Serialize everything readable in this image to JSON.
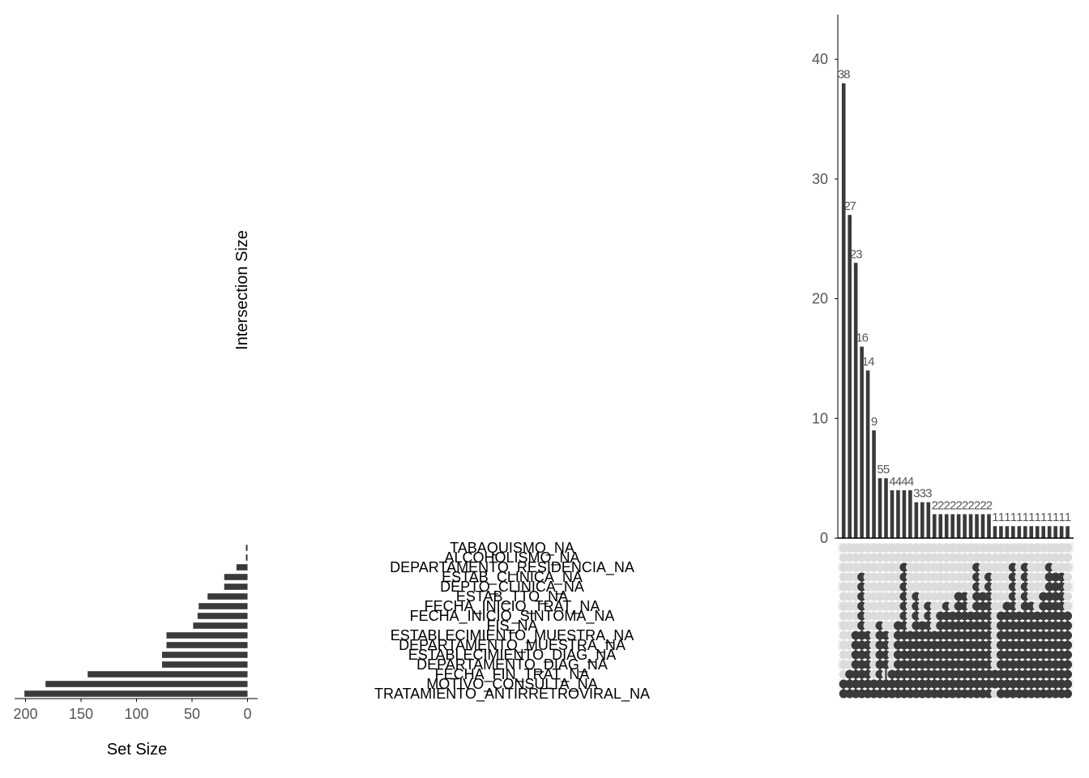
{
  "chart_data": {
    "type": "bar",
    "subtype": "upset",
    "intersection_axis": {
      "label": "Intersection Size",
      "ticks": [
        "0",
        "10",
        "20",
        "30",
        "40"
      ],
      "ylim": [
        0,
        43
      ]
    },
    "set_size_axis": {
      "label": "Set Size",
      "ticks": [
        "200",
        "150",
        "100",
        "50",
        "0"
      ],
      "xlim": [
        0,
        210
      ]
    },
    "sets": [
      {
        "name": "TABAQUISMO_NA",
        "size": 1
      },
      {
        "name": "ALCOHOLISMO_NA",
        "size": 1
      },
      {
        "name": "DEPARTAMENTO_RESIDENCIA_NA",
        "size": 10
      },
      {
        "name": "ESTAB_CLINICA_NA",
        "size": 21
      },
      {
        "name": "DEPTO_CLINICA_NA",
        "size": 21
      },
      {
        "name": "ESTAB_TTO_NA",
        "size": 36
      },
      {
        "name": "FECHA_INICIO_TRAT_NA",
        "size": 44
      },
      {
        "name": "FECHA_INICIO_SINTOMA_NA",
        "size": 45
      },
      {
        "name": "FIS_NA",
        "size": 49
      },
      {
        "name": "ESTABLECIMIENTO_MUESTRA_NA",
        "size": 73
      },
      {
        "name": "DEPARTAMENTO_MUESTRA_NA",
        "size": 73
      },
      {
        "name": "ESTABLECIMIENTO_DIAG_NA",
        "size": 77
      },
      {
        "name": "DEPARTAMENTO_DIAG_NA",
        "size": 77
      },
      {
        "name": "FECHA_FIN_TRAT_NA",
        "size": 144
      },
      {
        "name": "MOTIVO_CONSULTA_NA",
        "size": 182
      },
      {
        "name": "TRATAMIENTO_ANTIRRETROVIRAL_NA",
        "size": 201
      }
    ],
    "intersections": [
      {
        "size": 38,
        "label": "38",
        "sets": [
          14,
          15
        ]
      },
      {
        "size": 27,
        "label": "27",
        "sets": [
          13,
          14,
          15
        ]
      },
      {
        "size": 23,
        "label": "23",
        "sets": [
          9,
          10,
          11,
          12,
          13,
          14,
          15
        ]
      },
      {
        "size": 16,
        "label": "16",
        "sets": [
          3,
          4,
          5,
          6,
          7,
          8,
          9,
          10,
          11,
          12,
          13,
          14,
          15
        ]
      },
      {
        "size": 14,
        "label": "14",
        "sets": [
          9,
          10,
          11,
          12,
          13,
          14,
          15
        ]
      },
      {
        "size": 9,
        "label": "9",
        "sets": [
          14,
          15
        ]
      },
      {
        "size": 5,
        "label": "5",
        "sets": [
          8,
          9,
          10,
          11,
          12,
          13,
          14,
          15
        ]
      },
      {
        "size": 5,
        "label": "5",
        "sets": [
          9,
          10,
          11,
          12,
          14,
          15
        ]
      },
      {
        "size": 4,
        "label": "4",
        "sets": [
          13,
          14,
          15
        ]
      },
      {
        "size": 4,
        "label": "4",
        "sets": [
          8,
          9,
          10,
          11,
          12,
          13,
          14,
          15
        ]
      },
      {
        "size": 4,
        "label": "4",
        "sets": [
          2,
          3,
          4,
          5,
          6,
          7,
          8,
          9,
          10,
          11,
          12,
          13,
          14,
          15
        ]
      },
      {
        "size": 4,
        "label": "4",
        "sets": [
          9,
          10,
          11,
          12,
          13,
          14,
          15
        ]
      },
      {
        "size": 3,
        "label": "3",
        "sets": [
          5,
          6,
          7,
          8,
          9,
          10,
          11,
          12,
          13,
          14,
          15
        ]
      },
      {
        "size": 3,
        "label": "3",
        "sets": [
          8,
          9,
          10,
          11,
          12,
          13,
          14,
          15
        ]
      },
      {
        "size": 3,
        "label": "3",
        "sets": [
          6,
          7,
          8,
          9,
          10,
          11,
          12,
          13,
          14,
          15
        ]
      },
      {
        "size": 2,
        "label": "2",
        "sets": [
          9,
          10,
          11,
          12,
          13,
          14,
          15
        ]
      },
      {
        "size": 2,
        "label": "2",
        "sets": [
          7,
          8,
          9,
          10,
          11,
          12,
          13,
          14,
          15
        ]
      },
      {
        "size": 2,
        "label": "2",
        "sets": [
          6,
          7,
          8,
          9,
          10,
          11,
          12,
          13,
          14,
          15
        ]
      },
      {
        "size": 2,
        "label": "2",
        "sets": [
          7,
          8,
          9,
          10,
          11,
          12,
          13,
          14,
          15
        ]
      },
      {
        "size": 2,
        "label": "2",
        "sets": [
          5,
          6,
          7,
          8,
          9,
          10,
          11,
          12,
          13,
          14,
          15
        ]
      },
      {
        "size": 2,
        "label": "2",
        "sets": [
          5,
          6,
          7,
          8,
          9,
          10,
          11,
          12,
          13,
          14,
          15
        ]
      },
      {
        "size": 2,
        "label": "2",
        "sets": [
          7,
          8,
          9,
          10,
          11,
          12,
          13,
          14,
          15
        ]
      },
      {
        "size": 2,
        "label": "2",
        "sets": [
          2,
          3,
          4,
          5,
          6,
          7,
          8,
          9,
          10,
          11,
          12,
          13,
          14,
          15
        ]
      },
      {
        "size": 2,
        "label": "2",
        "sets": [
          5,
          6,
          7,
          8,
          9,
          10,
          11,
          12,
          13,
          14,
          15
        ]
      },
      {
        "size": 2,
        "label": "2",
        "sets": [
          3,
          4,
          5,
          6,
          7,
          8,
          9,
          10,
          11,
          12,
          13,
          14,
          15
        ]
      },
      {
        "size": 1,
        "label": "1",
        "sets": [
          13,
          14
        ]
      },
      {
        "size": 1,
        "label": "1",
        "sets": [
          7,
          8,
          9,
          10,
          11,
          12,
          13,
          14,
          15
        ]
      },
      {
        "size": 1,
        "label": "1",
        "sets": [
          6,
          7,
          8,
          9,
          10,
          11,
          12,
          13,
          14,
          15
        ]
      },
      {
        "size": 1,
        "label": "1",
        "sets": [
          2,
          3,
          4,
          5,
          6,
          7,
          8,
          9,
          10,
          11,
          12,
          13,
          14,
          15
        ]
      },
      {
        "size": 1,
        "label": "1",
        "sets": [
          7,
          8,
          9,
          10,
          11,
          12,
          13,
          14,
          15
        ]
      },
      {
        "size": 1,
        "label": "1",
        "sets": [
          2,
          3,
          4,
          5,
          6,
          7,
          8,
          9,
          10,
          11,
          12,
          13,
          14,
          15
        ]
      },
      {
        "size": 1,
        "label": "1",
        "sets": [
          6,
          7,
          8,
          9,
          10,
          11,
          12,
          13,
          14,
          15
        ]
      },
      {
        "size": 1,
        "label": "1",
        "sets": [
          7,
          8,
          9,
          10,
          11,
          12,
          13,
          14,
          15
        ]
      },
      {
        "size": 1,
        "label": "1",
        "sets": [
          5,
          6,
          7,
          8,
          9,
          10,
          11,
          12,
          13,
          14,
          15
        ]
      },
      {
        "size": 1,
        "label": "1",
        "sets": [
          2,
          3,
          4,
          5,
          6,
          7,
          8,
          9,
          10,
          11,
          12,
          13,
          14,
          15
        ]
      },
      {
        "size": 1,
        "label": "1",
        "sets": [
          3,
          4,
          5,
          6,
          7,
          8,
          9,
          10,
          11,
          12,
          13,
          14,
          15
        ]
      },
      {
        "size": 1,
        "label": "1",
        "sets": [
          3,
          4,
          5,
          6,
          7,
          8,
          9,
          10,
          11,
          12,
          13,
          14,
          15
        ]
      },
      {
        "size": 1,
        "label": "1",
        "sets": [
          7,
          8,
          9,
          10,
          11,
          12,
          13,
          14,
          15
        ]
      }
    ],
    "colors": {
      "bar": "#3a3a3a",
      "dot_active": "#3a3a3a",
      "dot_inactive": "#dcdcdc",
      "stripe": "#f2f2f2",
      "axis_text": "#555555",
      "label_text": "#000000"
    },
    "grid": false
  }
}
